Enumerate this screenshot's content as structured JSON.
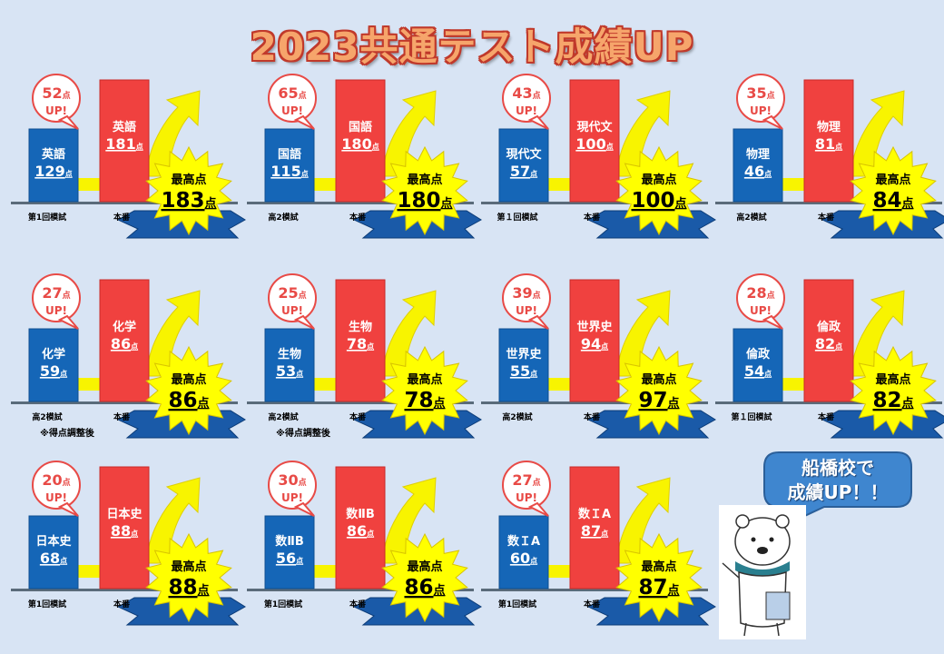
{
  "page": {
    "title": "2023共通テスト成績UP",
    "callout_line1": "船橋校で",
    "callout_line2": "成績UP！！"
  },
  "colors": {
    "background": "#d8e4f4",
    "before_bar": "#1566b7",
    "after_bar": "#f0413f",
    "arrow": "#f8f400",
    "burst": "#ffff00",
    "ribbon": "#1a5aa8",
    "bubble_border": "#e84a46",
    "bubble_text": "#e84a46"
  },
  "panels": [
    {
      "up": "52",
      "up_unit": "点",
      "up_label": "UP!",
      "subject": "英語",
      "before": "129",
      "after": "181",
      "unit": "点",
      "before_label": "第1回模試",
      "after_label": "本番",
      "best_label": "最高点",
      "best": "183",
      "best_unit": "点",
      "note": ""
    },
    {
      "up": "65",
      "up_unit": "点",
      "up_label": "UP!",
      "subject": "国語",
      "before": "115",
      "after": "180",
      "unit": "点",
      "before_label": "高2模試",
      "after_label": "本番",
      "best_label": "最高点",
      "best": "180",
      "best_unit": "点",
      "note": ""
    },
    {
      "up": "43",
      "up_unit": "点",
      "up_label": "UP!",
      "subject": "現代文",
      "before": "57",
      "after": "100",
      "unit": "点",
      "before_label": "第１回模試",
      "after_label": "本番",
      "best_label": "最高点",
      "best": "100",
      "best_unit": "点",
      "note": ""
    },
    {
      "up": "35",
      "up_unit": "点",
      "up_label": "UP!",
      "subject": "物理",
      "before": "46",
      "after": "81",
      "unit": "点",
      "before_label": "高2模試",
      "after_label": "本番",
      "best_label": "最高点",
      "best": "84",
      "best_unit": "点",
      "note": ""
    },
    {
      "up": "27",
      "up_unit": "点",
      "up_label": "UP!",
      "subject": "化学",
      "before": "59",
      "after": "86",
      "unit": "点",
      "before_label": "高2模試",
      "after_label": "本番",
      "best_label": "最高点",
      "best": "86",
      "best_unit": "点",
      "note": "※得点調整後"
    },
    {
      "up": "25",
      "up_unit": "点",
      "up_label": "UP!",
      "subject": "生物",
      "before": "53",
      "after": "78",
      "unit": "点",
      "before_label": "高2模試",
      "after_label": "本番",
      "best_label": "最高点",
      "best": "78",
      "best_unit": "点",
      "note": "※得点調整後"
    },
    {
      "up": "39",
      "up_unit": "点",
      "up_label": "UP!",
      "subject": "世界史",
      "before": "55",
      "after": "94",
      "unit": "点",
      "before_label": "高2模試",
      "after_label": "本番",
      "best_label": "最高点",
      "best": "97",
      "best_unit": "点",
      "note": ""
    },
    {
      "up": "28",
      "up_unit": "点",
      "up_label": "UP!",
      "subject": "倫政",
      "before": "54",
      "after": "82",
      "unit": "点",
      "before_label": "第１回模試",
      "after_label": "本番",
      "best_label": "最高点",
      "best": "82",
      "best_unit": "点",
      "note": ""
    },
    {
      "up": "20",
      "up_unit": "点",
      "up_label": "UP!",
      "subject": "日本史",
      "before": "68",
      "after": "88",
      "unit": "点",
      "before_label": "第1回模試",
      "after_label": "本番",
      "best_label": "最高点",
      "best": "88",
      "best_unit": "点",
      "note": ""
    },
    {
      "up": "30",
      "up_unit": "点",
      "up_label": "UP!",
      "subject": "数ⅡB",
      "before": "56",
      "after": "86",
      "unit": "点",
      "before_label": "第1回模試",
      "after_label": "本番",
      "best_label": "最高点",
      "best": "86",
      "best_unit": "点",
      "note": ""
    },
    {
      "up": "27",
      "up_unit": "点",
      "up_label": "UP!",
      "subject": "数ＩA",
      "before": "60",
      "after": "87",
      "unit": "点",
      "before_label": "第1回模試",
      "after_label": "本番",
      "best_label": "最高点",
      "best": "87",
      "best_unit": "点",
      "note": ""
    }
  ]
}
